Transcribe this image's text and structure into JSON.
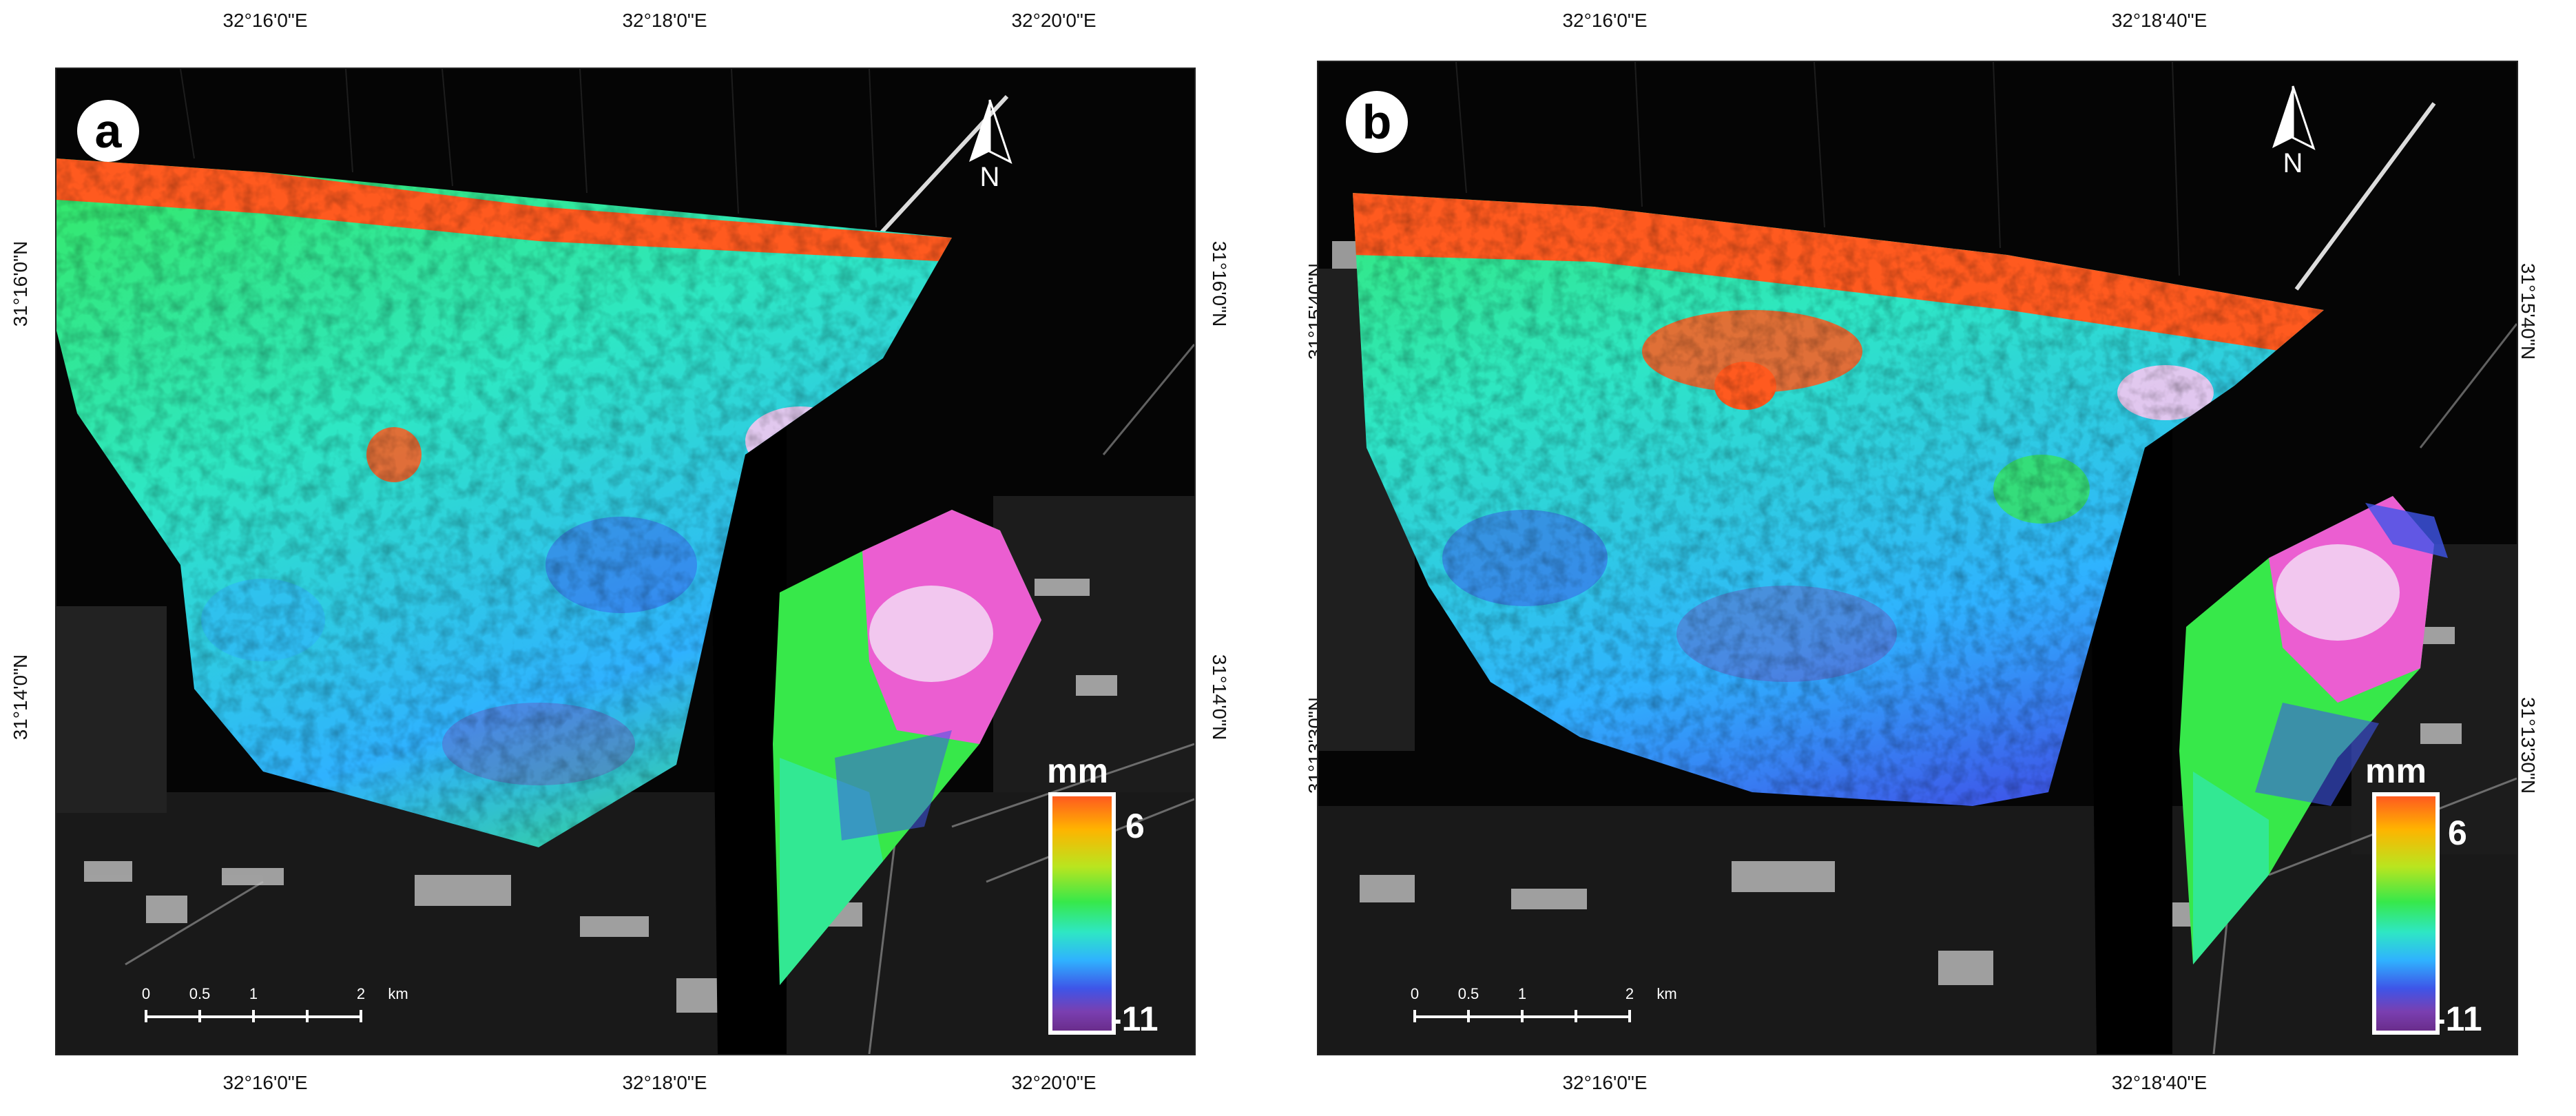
{
  "panels": [
    {
      "label": "a",
      "top_ticks": [
        "32°16'0\"E",
        "32°18'0\"E",
        "32°20'0\"E"
      ],
      "bottom_ticks": [
        "32°16'0\"E",
        "32°18'0\"E",
        "32°20'0\"E"
      ],
      "left_ticks": [
        "31°16'0\"N",
        "31°14'0\"N"
      ],
      "right_ticks": [
        "31°16'0\"N",
        "31°14'0\"N"
      ],
      "north_label": "N",
      "legend": {
        "unit": "mm",
        "max": "6",
        "min": "-11"
      },
      "scale": {
        "labels": [
          "0",
          "0.5",
          "1",
          "2"
        ],
        "unit": "km"
      }
    },
    {
      "label": "b",
      "top_ticks": [
        "32°16'0\"E",
        "32°18'40\"E"
      ],
      "bottom_ticks": [
        "32°16'0\"E",
        "32°18'40\"E"
      ],
      "left_ticks": [
        "31°15'40\"N",
        "31°13'30\"N"
      ],
      "right_ticks": [
        "31°15'40\"N",
        "31°13'30\"N"
      ],
      "north_label": "N",
      "legend": {
        "unit": "mm",
        "max": "6",
        "min": "-11"
      },
      "scale": {
        "labels": [
          "0",
          "0.5",
          "1",
          "2"
        ],
        "unit": "km"
      }
    }
  ],
  "colors": {
    "background": "#050505",
    "orange": "#ff5a1f",
    "green": "#37e84a",
    "cyan": "#2ee7c4",
    "blue": "#3e55e8",
    "purple": "#7a3fb0",
    "magenta": "#ff4fe0"
  }
}
